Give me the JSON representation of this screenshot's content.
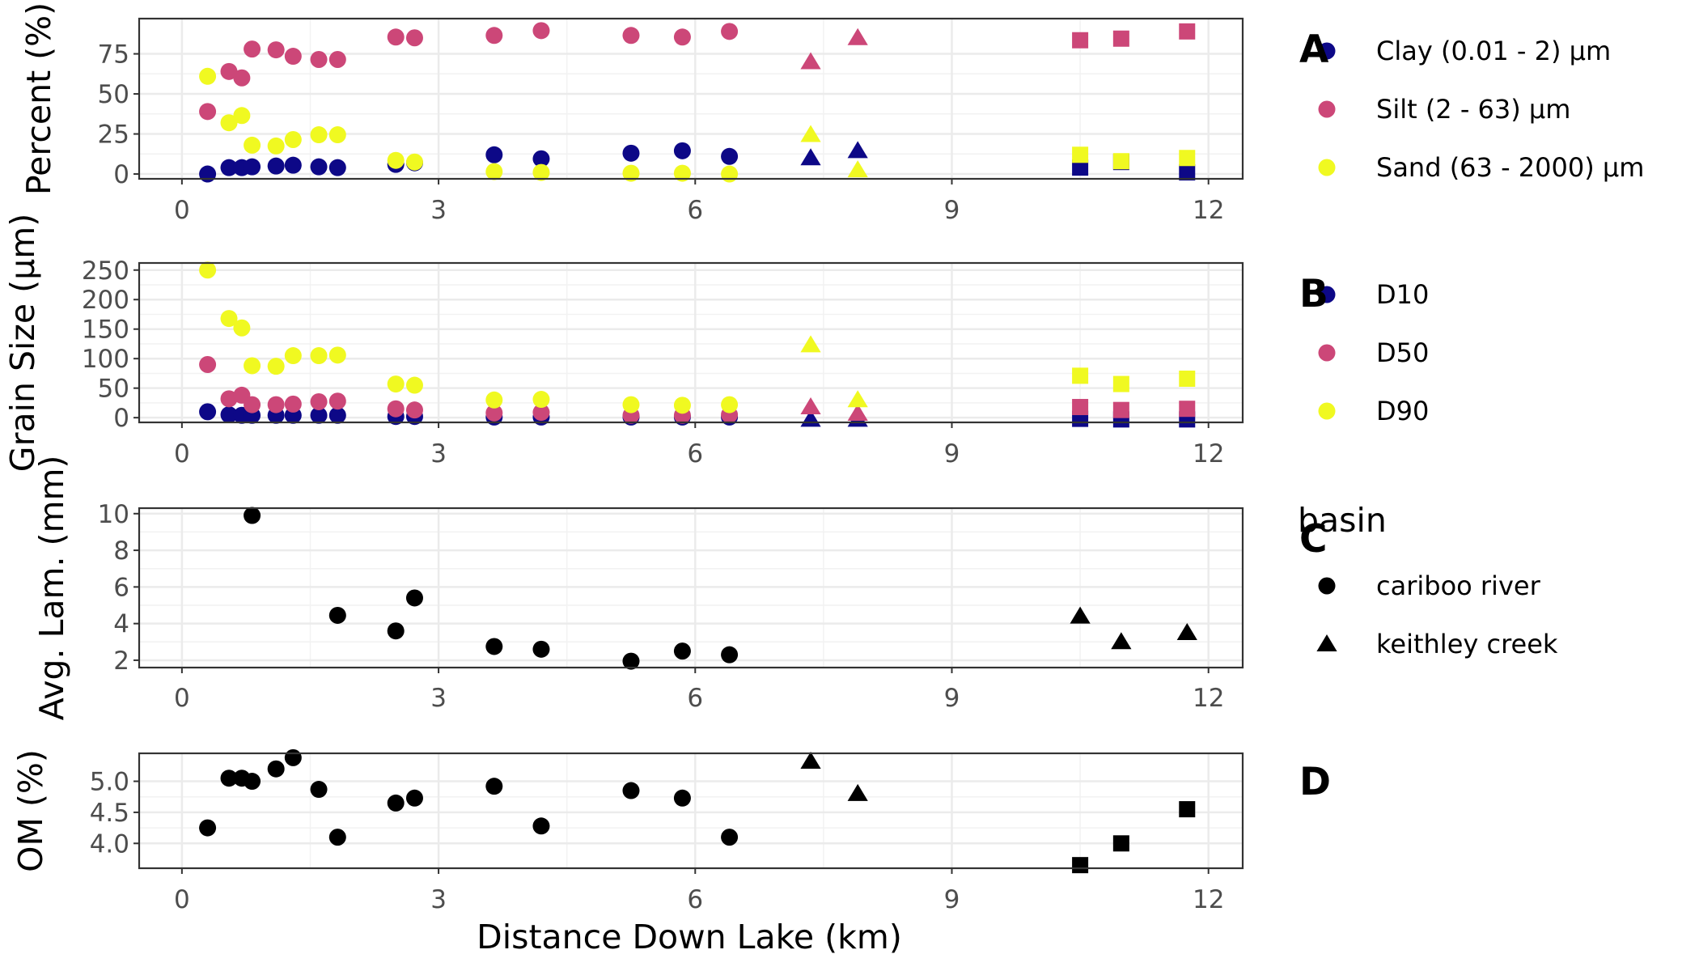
{
  "chart_data": {
    "type": "scatter",
    "xlabel": "Distance Down Lake (km)",
    "xlim": [
      -0.5,
      12.4
    ],
    "x_ticks": [
      0,
      3,
      6,
      9,
      12
    ],
    "grid": true,
    "colors": {
      "clay": "#0d0887",
      "silt": "#cc4778",
      "sand": "#f0f921",
      "black": "#000000"
    },
    "legend": {
      "basin_title": "basin",
      "basin_entries": [
        {
          "label": "cariboo river",
          "shape": "circle"
        },
        {
          "label": "keithley creek",
          "shape": "triangle"
        }
      ]
    },
    "panels": [
      {
        "label": "A",
        "ylabel": "Percent (%)",
        "ylim": [
          -3,
          97
        ],
        "y_ticks": [
          0,
          25,
          50,
          75
        ],
        "series": [
          {
            "name": "Clay  (0.01 - 2) μm",
            "color": "clay",
            "points": [
              [
                0.3,
                0,
                "c"
              ],
              [
                0.55,
                4,
                "c"
              ],
              [
                0.7,
                4,
                "c"
              ],
              [
                0.82,
                4.5,
                "c"
              ],
              [
                1.1,
                5,
                "c"
              ],
              [
                1.3,
                5.5,
                "c"
              ],
              [
                1.6,
                4.5,
                "c"
              ],
              [
                1.82,
                4,
                "c"
              ],
              [
                2.5,
                6,
                "c"
              ],
              [
                2.72,
                7,
                "c"
              ],
              [
                3.65,
                12,
                "c"
              ],
              [
                4.2,
                9.5,
                "c"
              ],
              [
                5.25,
                13,
                "c"
              ],
              [
                5.85,
                14.5,
                "c"
              ],
              [
                6.4,
                11,
                "c"
              ],
              [
                7.35,
                10,
                "t"
              ],
              [
                7.9,
                14.5,
                "t"
              ],
              [
                10.5,
                4,
                "s"
              ],
              [
                10.98,
                7.5,
                "s"
              ],
              [
                11.75,
                1,
                "s"
              ]
            ]
          },
          {
            "name": "Silt  (2 - 63) μm",
            "color": "silt",
            "points": [
              [
                0.3,
                39,
                "c"
              ],
              [
                0.55,
                64,
                "c"
              ],
              [
                0.7,
                60,
                "c"
              ],
              [
                0.82,
                78,
                "c"
              ],
              [
                1.1,
                77.5,
                "c"
              ],
              [
                1.3,
                73.5,
                "c"
              ],
              [
                1.6,
                71.5,
                "c"
              ],
              [
                1.82,
                71.5,
                "c"
              ],
              [
                2.5,
                85.5,
                "c"
              ],
              [
                2.72,
                85,
                "c"
              ],
              [
                3.65,
                86.5,
                "c"
              ],
              [
                4.2,
                89.5,
                "c"
              ],
              [
                5.25,
                86.5,
                "c"
              ],
              [
                5.85,
                85.5,
                "c"
              ],
              [
                6.4,
                89,
                "c"
              ],
              [
                7.35,
                70,
                "t"
              ],
              [
                7.9,
                85,
                "t"
              ],
              [
                10.5,
                83.5,
                "s"
              ],
              [
                10.98,
                84.5,
                "s"
              ],
              [
                11.75,
                89,
                "s"
              ]
            ]
          },
          {
            "name": "Sand  (63 - 2000) μm",
            "color": "sand",
            "points": [
              [
                0.3,
                61,
                "c"
              ],
              [
                0.55,
                32,
                "c"
              ],
              [
                0.7,
                36.5,
                "c"
              ],
              [
                0.82,
                18,
                "c"
              ],
              [
                1.1,
                17.5,
                "c"
              ],
              [
                1.3,
                21.5,
                "c"
              ],
              [
                1.6,
                24.5,
                "c"
              ],
              [
                1.82,
                24.5,
                "c"
              ],
              [
                2.5,
                8.5,
                "c"
              ],
              [
                2.72,
                7.5,
                "c"
              ],
              [
                3.65,
                1.5,
                "c"
              ],
              [
                4.2,
                1,
                "c"
              ],
              [
                5.25,
                0.5,
                "c"
              ],
              [
                5.85,
                0.5,
                "c"
              ],
              [
                6.4,
                0,
                "c"
              ],
              [
                7.35,
                24.5,
                "t"
              ],
              [
                7.9,
                2.5,
                "t"
              ],
              [
                10.5,
                12,
                "s"
              ],
              [
                10.98,
                8,
                "s"
              ],
              [
                11.75,
                10,
                "s"
              ]
            ]
          }
        ]
      },
      {
        "label": "B",
        "ylabel": "Grain Size (μm)",
        "ylim": [
          -8,
          262
        ],
        "y_ticks": [
          0,
          50,
          100,
          150,
          200,
          250
        ],
        "series": [
          {
            "name": "D10",
            "color": "clay",
            "points": [
              [
                0.3,
                10,
                "c"
              ],
              [
                0.55,
                5,
                "c"
              ],
              [
                0.7,
                4,
                "c"
              ],
              [
                0.82,
                4,
                "c"
              ],
              [
                1.1,
                4,
                "c"
              ],
              [
                1.3,
                4,
                "c"
              ],
              [
                1.6,
                4,
                "c"
              ],
              [
                1.82,
                4,
                "c"
              ],
              [
                2.5,
                2,
                "c"
              ],
              [
                2.72,
                2,
                "c"
              ],
              [
                3.65,
                1,
                "c"
              ],
              [
                4.2,
                1,
                "c"
              ],
              [
                5.25,
                1,
                "c"
              ],
              [
                5.85,
                1,
                "c"
              ],
              [
                6.4,
                1,
                "c"
              ],
              [
                7.35,
                -3,
                "t"
              ],
              [
                7.9,
                -3,
                "t"
              ],
              [
                10.5,
                -2,
                "s"
              ],
              [
                10.98,
                -3,
                "s"
              ],
              [
                11.75,
                -3,
                "s"
              ]
            ]
          },
          {
            "name": "D50",
            "color": "silt",
            "points": [
              [
                0.3,
                90,
                "c"
              ],
              [
                0.55,
                32,
                "c"
              ],
              [
                0.7,
                38,
                "c"
              ],
              [
                0.82,
                22,
                "c"
              ],
              [
                1.1,
                22,
                "c"
              ],
              [
                1.3,
                23,
                "c"
              ],
              [
                1.6,
                27,
                "c"
              ],
              [
                1.82,
                28,
                "c"
              ],
              [
                2.5,
                15,
                "c"
              ],
              [
                2.72,
                13,
                "c"
              ],
              [
                3.65,
                8,
                "c"
              ],
              [
                4.2,
                9,
                "c"
              ],
              [
                5.25,
                4,
                "c"
              ],
              [
                5.85,
                4,
                "c"
              ],
              [
                6.4,
                5,
                "c"
              ],
              [
                7.35,
                18,
                "t"
              ],
              [
                7.9,
                7,
                "t"
              ],
              [
                10.5,
                18,
                "s"
              ],
              [
                10.98,
                13,
                "s"
              ],
              [
                11.75,
                15,
                "s"
              ]
            ]
          },
          {
            "name": "D90",
            "color": "sand",
            "points": [
              [
                0.3,
                250,
                "c"
              ],
              [
                0.55,
                168,
                "c"
              ],
              [
                0.7,
                152,
                "c"
              ],
              [
                0.82,
                88,
                "c"
              ],
              [
                1.1,
                87,
                "c"
              ],
              [
                1.3,
                105,
                "c"
              ],
              [
                1.6,
                105,
                "c"
              ],
              [
                1.82,
                106,
                "c"
              ],
              [
                2.5,
                57,
                "c"
              ],
              [
                2.72,
                55,
                "c"
              ],
              [
                3.65,
                30,
                "c"
              ],
              [
                4.2,
                31,
                "c"
              ],
              [
                5.25,
                22,
                "c"
              ],
              [
                5.85,
                21,
                "c"
              ],
              [
                6.4,
                22,
                "c"
              ],
              [
                7.35,
                123,
                "t"
              ],
              [
                7.9,
                30,
                "t"
              ],
              [
                10.5,
                71,
                "s"
              ],
              [
                10.98,
                57,
                "s"
              ],
              [
                11.75,
                66,
                "s"
              ]
            ]
          }
        ]
      },
      {
        "label": "C",
        "ylabel": "Avg. Lam. (mm)",
        "ylim": [
          1.6,
          10.3
        ],
        "y_ticks": [
          2,
          4,
          6,
          8,
          10
        ],
        "series": [
          {
            "name": "",
            "color": "black",
            "points": [
              [
                0.82,
                9.9,
                "c"
              ],
              [
                1.82,
                4.45,
                "c"
              ],
              [
                2.5,
                3.6,
                "c"
              ],
              [
                2.72,
                5.4,
                "c"
              ],
              [
                3.65,
                2.75,
                "c"
              ],
              [
                4.2,
                2.6,
                "c"
              ],
              [
                5.25,
                1.95,
                "c"
              ],
              [
                5.85,
                2.5,
                "c"
              ],
              [
                6.4,
                2.3,
                "c"
              ],
              [
                10.5,
                4.4,
                "t"
              ],
              [
                10.98,
                3.0,
                "t"
              ],
              [
                11.75,
                3.5,
                "t"
              ]
            ]
          }
        ]
      },
      {
        "label": "D",
        "ylabel": "OM (%)",
        "ylim": [
          3.6,
          5.45
        ],
        "y_ticks": [
          4.0,
          4.5,
          5.0
        ],
        "series": [
          {
            "name": "",
            "color": "black",
            "points": [
              [
                0.3,
                4.25,
                "c"
              ],
              [
                0.55,
                5.05,
                "c"
              ],
              [
                0.7,
                5.05,
                "c"
              ],
              [
                0.82,
                5.0,
                "c"
              ],
              [
                1.1,
                5.2,
                "c"
              ],
              [
                1.3,
                5.38,
                "c"
              ],
              [
                1.6,
                4.87,
                "c"
              ],
              [
                1.82,
                4.1,
                "c"
              ],
              [
                2.5,
                4.65,
                "c"
              ],
              [
                2.72,
                4.73,
                "c"
              ],
              [
                3.65,
                4.92,
                "c"
              ],
              [
                4.2,
                4.28,
                "c"
              ],
              [
                5.25,
                4.85,
                "c"
              ],
              [
                5.85,
                4.73,
                "c"
              ],
              [
                6.4,
                4.1,
                "c"
              ],
              [
                7.35,
                5.32,
                "t"
              ],
              [
                7.9,
                4.8,
                "t"
              ],
              [
                10.5,
                3.65,
                "s"
              ],
              [
                10.98,
                4.0,
                "s"
              ],
              [
                11.75,
                4.55,
                "s"
              ]
            ]
          }
        ]
      }
    ]
  }
}
